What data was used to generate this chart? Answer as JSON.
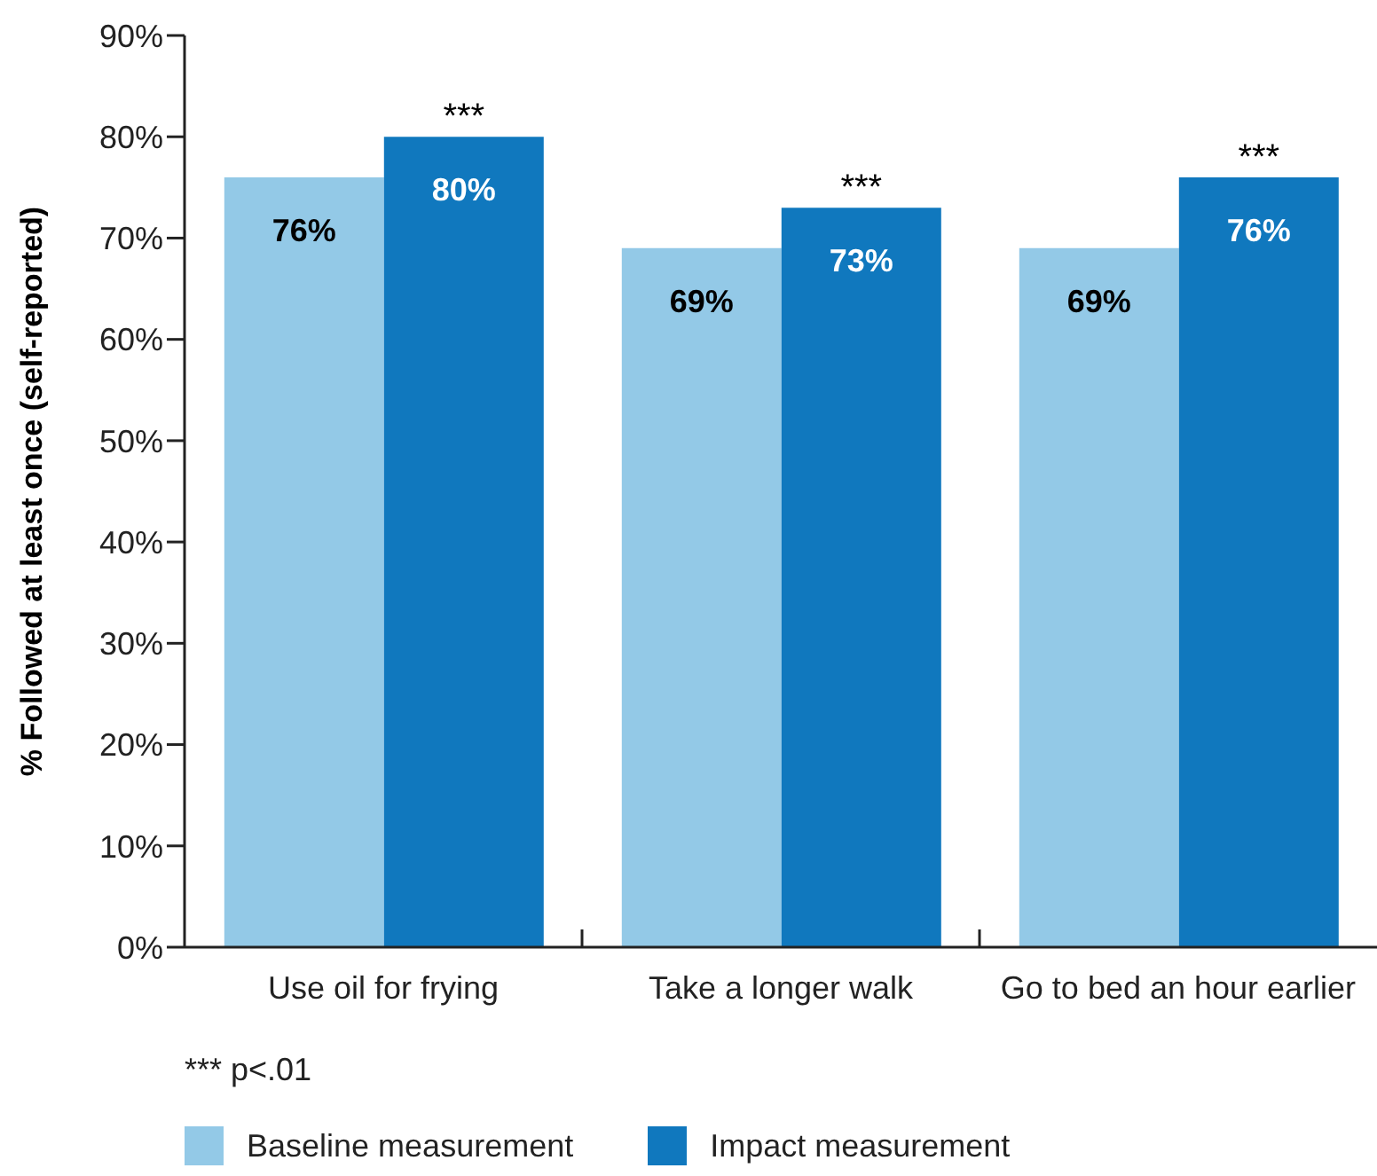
{
  "chart_data": {
    "type": "bar",
    "ylabel": "% Followed at least once (self-reported)",
    "categories": [
      "Use oil for frying",
      "Take a longer walk",
      "Go to bed an hour earlier"
    ],
    "series": [
      {
        "name": "Baseline measurement",
        "color": "#93c9e7",
        "values": [
          76,
          69,
          69
        ],
        "value_labels": [
          "76%",
          "69%",
          "69%"
        ]
      },
      {
        "name": "Impact measurement",
        "color": "#1078be",
        "values": [
          80,
          73,
          76
        ],
        "value_labels": [
          "80%",
          "73%",
          "76%"
        ]
      }
    ],
    "ylim": [
      0,
      90
    ],
    "yticks": [
      {
        "value": 0,
        "label": "0%"
      },
      {
        "value": 10,
        "label": "10%"
      },
      {
        "value": 20,
        "label": "20%"
      },
      {
        "value": 30,
        "label": "30%"
      },
      {
        "value": 40,
        "label": "40%"
      },
      {
        "value": 50,
        "label": "50%"
      },
      {
        "value": 60,
        "label": "60%"
      },
      {
        "value": 70,
        "label": "70%"
      },
      {
        "value": 80,
        "label": "80%"
      },
      {
        "value": 90,
        "label": "90%"
      }
    ],
    "annotations": [
      {
        "text": "***",
        "x": "Use oil for frying",
        "y": 80
      },
      {
        "text": "***",
        "x": "Take a longer walk",
        "y": 73
      },
      {
        "text": "***",
        "x": "Go to bed an hour earlier",
        "y": 76
      },
      "*** p<.01"
    ],
    "legend": "bottom left"
  }
}
